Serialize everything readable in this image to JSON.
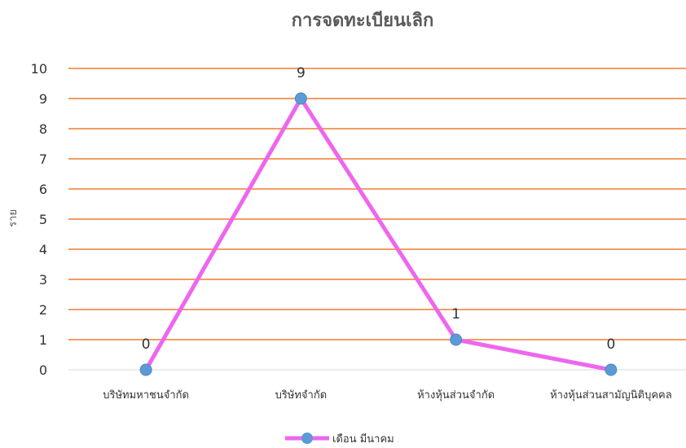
{
  "chart_data": {
    "type": "line",
    "title": "การจดทะเบียนเลิก",
    "ylabel": "ราย",
    "xlabel": "",
    "ylim": [
      0,
      10
    ],
    "yticks": [
      0,
      1,
      2,
      3,
      4,
      5,
      6,
      7,
      8,
      9,
      10
    ],
    "categories": [
      "บริษัทมหาชนจำกัด",
      "บริษัทจำกัด",
      "ห้างหุ้นส่วนจำกัด",
      "ห้างหุ้นส่วนสามัญนิติบุคคล"
    ],
    "series": [
      {
        "name": "เดือน มีนาคม",
        "values": [
          0,
          9,
          1,
          0
        ]
      }
    ],
    "data_labels": true,
    "grid": true,
    "legend": "bottom",
    "colors": {
      "line": "#EE66EE",
      "marker": "#5B9BD5",
      "grid": "#ED7D31"
    }
  }
}
